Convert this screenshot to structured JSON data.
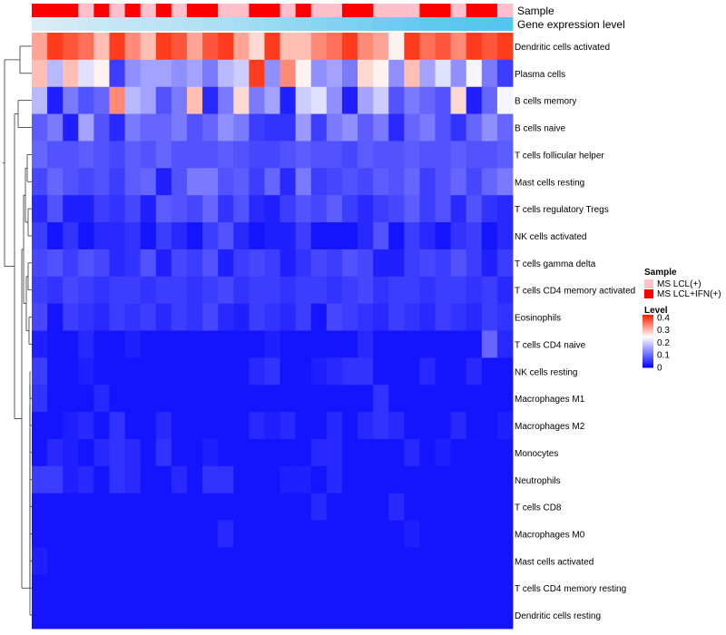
{
  "chart_data": {
    "type": "heatmap",
    "title": "",
    "annotation_tracks": [
      "Sample",
      "Gene expression level"
    ],
    "sample_legend": {
      "title": "Sample",
      "entries": [
        {
          "label": "MS LCL(+)",
          "color": "#ffc0cb"
        },
        {
          "label": "MS LCL+IFN(+)",
          "color": "#ff0000"
        }
      ]
    },
    "level_legend": {
      "title": "Level",
      "ticks": [
        "0.4",
        "0.3",
        "0.2",
        "0.1",
        "0"
      ],
      "tick_values": [
        0.4,
        0.3,
        0.2,
        0.1,
        0
      ],
      "range": [
        0,
        0.42
      ],
      "colors": {
        "low": "#0000ff",
        "mid": "#ffffff",
        "high": "#ff2200"
      }
    },
    "columns": 31,
    "sample_groups": [
      "IFN",
      "IFN",
      "IFN",
      "LCL",
      "IFN",
      "LCL",
      "IFN",
      "LCL",
      "IFN",
      "LCL",
      "IFN",
      "IFN",
      "LCL",
      "LCL",
      "IFN",
      "IFN",
      "LCL",
      "IFN",
      "LCL",
      "LCL",
      "IFN",
      "IFN",
      "LCL",
      "LCL",
      "LCL",
      "IFN",
      "IFN",
      "LCL",
      "IFN",
      "IFN",
      "LCL"
    ],
    "expression_track": [
      0.02,
      0.05,
      0.08,
      0.12,
      0.15,
      0.18,
      0.2,
      0.22,
      0.25,
      0.28,
      0.3,
      0.33,
      0.36,
      0.4,
      0.44,
      0.48,
      0.52,
      0.56,
      0.6,
      0.64,
      0.68,
      0.72,
      0.76,
      0.8,
      0.84,
      0.88,
      0.9,
      0.92,
      0.94,
      0.96,
      0.98
    ],
    "rows": [
      {
        "label": "Dendritic cells activated",
        "values": [
          0.32,
          0.4,
          0.38,
          0.36,
          0.3,
          0.4,
          0.34,
          0.3,
          0.4,
          0.38,
          0.32,
          0.38,
          0.4,
          0.32,
          0.28,
          0.4,
          0.3,
          0.3,
          0.34,
          0.36,
          0.4,
          0.34,
          0.32,
          0.26,
          0.4,
          0.36,
          0.38,
          0.34,
          0.4,
          0.38,
          0.4
        ]
      },
      {
        "label": "Plasma cells",
        "values": [
          0.3,
          0.18,
          0.3,
          0.22,
          0.26,
          0.06,
          0.14,
          0.16,
          0.16,
          0.14,
          0.16,
          0.12,
          0.18,
          0.2,
          0.4,
          0.14,
          0.34,
          0.26,
          0.14,
          0.16,
          0.12,
          0.28,
          0.26,
          0.14,
          0.3,
          0.16,
          0.22,
          0.14,
          0.24,
          0.12,
          0.06
        ]
      },
      {
        "label": "B cells memory",
        "values": [
          0.18,
          0.03,
          0.12,
          0.08,
          0.1,
          0.34,
          0.18,
          0.16,
          0.08,
          0.12,
          0.3,
          0.04,
          0.12,
          0.28,
          0.12,
          0.16,
          0.03,
          0.2,
          0.22,
          0.14,
          0.03,
          0.16,
          0.2,
          0.08,
          0.12,
          0.1,
          0.08,
          0.28,
          0.03,
          0.1,
          0.24
        ]
      },
      {
        "label": "B cells naive",
        "values": [
          0.09,
          0.12,
          0.03,
          0.16,
          0.08,
          0.04,
          0.12,
          0.1,
          0.1,
          0.12,
          0.08,
          0.1,
          0.14,
          0.12,
          0.06,
          0.05,
          0.05,
          0.15,
          0.06,
          0.12,
          0.14,
          0.09,
          0.12,
          0.04,
          0.1,
          0.12,
          0.08,
          0.05,
          0.1,
          0.14,
          0.1
        ]
      },
      {
        "label": "T cells follicular helper",
        "values": [
          0.1,
          0.08,
          0.08,
          0.09,
          0.08,
          0.07,
          0.09,
          0.08,
          0.1,
          0.08,
          0.08,
          0.08,
          0.09,
          0.08,
          0.07,
          0.07,
          0.08,
          0.09,
          0.08,
          0.08,
          0.07,
          0.09,
          0.08,
          0.08,
          0.09,
          0.08,
          0.08,
          0.09,
          0.08,
          0.08,
          0.09
        ]
      },
      {
        "label": "Mast cells resting",
        "values": [
          0.07,
          0.1,
          0.08,
          0.07,
          0.08,
          0.06,
          0.09,
          0.1,
          0.03,
          0.08,
          0.12,
          0.12,
          0.08,
          0.09,
          0.06,
          0.1,
          0.04,
          0.12,
          0.06,
          0.07,
          0.08,
          0.07,
          0.09,
          0.08,
          0.1,
          0.06,
          0.08,
          0.1,
          0.07,
          0.1,
          0.12
        ]
      },
      {
        "label": "T cells regulatory  Tregs",
        "values": [
          0.04,
          0.08,
          0.03,
          0.03,
          0.06,
          0.05,
          0.07,
          0.03,
          0.09,
          0.08,
          0.07,
          0.1,
          0.05,
          0.08,
          0.04,
          0.03,
          0.06,
          0.08,
          0.07,
          0.09,
          0.06,
          0.04,
          0.06,
          0.07,
          0.09,
          0.06,
          0.08,
          0.04,
          0.08,
          0.05,
          0.04
        ]
      },
      {
        "label": "NK cells activated",
        "values": [
          0.06,
          0.02,
          0.05,
          0.02,
          0.04,
          0.04,
          0.05,
          0.02,
          0.06,
          0.04,
          0.02,
          0.06,
          0.08,
          0.04,
          0.02,
          0.03,
          0.03,
          0.06,
          0.02,
          0.02,
          0.02,
          0.04,
          0.08,
          0.02,
          0.06,
          0.04,
          0.02,
          0.05,
          0.06,
          0.02,
          0.04
        ]
      },
      {
        "label": "T cells gamma delta",
        "values": [
          0.07,
          0.08,
          0.06,
          0.08,
          0.07,
          0.04,
          0.05,
          0.08,
          0.03,
          0.07,
          0.06,
          0.08,
          0.03,
          0.06,
          0.07,
          0.06,
          0.03,
          0.05,
          0.07,
          0.06,
          0.08,
          0.07,
          0.03,
          0.03,
          0.06,
          0.07,
          0.06,
          0.08,
          0.06,
          0.03,
          0.06
        ]
      },
      {
        "label": "T cells CD4 memory activated",
        "values": [
          0.06,
          0.05,
          0.07,
          0.06,
          0.05,
          0.06,
          0.06,
          0.05,
          0.06,
          0.06,
          0.05,
          0.06,
          0.07,
          0.05,
          0.06,
          0.06,
          0.05,
          0.06,
          0.06,
          0.05,
          0.06,
          0.07,
          0.05,
          0.06,
          0.06,
          0.05,
          0.06,
          0.06,
          0.05,
          0.06,
          0.04
        ]
      },
      {
        "label": "Eosinophils",
        "values": [
          0.07,
          0.02,
          0.06,
          0.05,
          0.04,
          0.06,
          0.05,
          0.06,
          0.04,
          0.06,
          0.05,
          0.07,
          0.04,
          0.03,
          0.06,
          0.05,
          0.04,
          0.06,
          0.02,
          0.07,
          0.06,
          0.05,
          0.04,
          0.06,
          0.05,
          0.04,
          0.06,
          0.05,
          0.04,
          0.06,
          0.05
        ]
      },
      {
        "label": "T cells CD4 naive",
        "values": [
          0.03,
          0.02,
          0.02,
          0.04,
          0.02,
          0.02,
          0.03,
          0.02,
          0.02,
          0.02,
          0.02,
          0.02,
          0.02,
          0.02,
          0.02,
          0.03,
          0.02,
          0.02,
          0.02,
          0.02,
          0.02,
          0.04,
          0.02,
          0.02,
          0.02,
          0.02,
          0.02,
          0.02,
          0.02,
          0.1,
          0.04
        ]
      },
      {
        "label": "NK cells resting",
        "values": [
          0.06,
          0.02,
          0.02,
          0.03,
          0.02,
          0.02,
          0.02,
          0.02,
          0.02,
          0.02,
          0.02,
          0.02,
          0.02,
          0.02,
          0.04,
          0.05,
          0.02,
          0.02,
          0.03,
          0.04,
          0.05,
          0.05,
          0.02,
          0.02,
          0.02,
          0.04,
          0.02,
          0.02,
          0.04,
          0.02,
          0.02
        ]
      },
      {
        "label": "Macrophages M1",
        "values": [
          0.05,
          0.02,
          0.02,
          0.02,
          0.04,
          0.02,
          0.02,
          0.02,
          0.02,
          0.02,
          0.02,
          0.02,
          0.02,
          0.02,
          0.02,
          0.02,
          0.02,
          0.02,
          0.02,
          0.02,
          0.02,
          0.02,
          0.05,
          0.02,
          0.02,
          0.02,
          0.02,
          0.02,
          0.02,
          0.02,
          0.02
        ]
      },
      {
        "label": "Macrophages M2",
        "values": [
          0.02,
          0.02,
          0.03,
          0.04,
          0.02,
          0.05,
          0.02,
          0.02,
          0.04,
          0.02,
          0.02,
          0.02,
          0.02,
          0.02,
          0.04,
          0.03,
          0.04,
          0.02,
          0.02,
          0.04,
          0.02,
          0.04,
          0.05,
          0.04,
          0.02,
          0.02,
          0.02,
          0.04,
          0.02,
          0.02,
          0.03
        ]
      },
      {
        "label": "Monocytes",
        "values": [
          0.02,
          0.04,
          0.03,
          0.02,
          0.04,
          0.05,
          0.04,
          0.02,
          0.05,
          0.02,
          0.02,
          0.03,
          0.02,
          0.02,
          0.02,
          0.02,
          0.02,
          0.02,
          0.04,
          0.04,
          0.02,
          0.02,
          0.02,
          0.02,
          0.04,
          0.02,
          0.03,
          0.02,
          0.02,
          0.02,
          0.02
        ]
      },
      {
        "label": "Neutrophils",
        "values": [
          0.06,
          0.06,
          0.03,
          0.04,
          0.02,
          0.05,
          0.04,
          0.02,
          0.02,
          0.04,
          0.02,
          0.05,
          0.05,
          0.02,
          0.02,
          0.02,
          0.03,
          0.03,
          0.02,
          0.04,
          0.02,
          0.02,
          0.02,
          0.02,
          0.02,
          0.02,
          0.02,
          0.02,
          0.02,
          0.02,
          0.02
        ]
      },
      {
        "label": "T cells CD8",
        "values": [
          0.02,
          0.02,
          0.02,
          0.02,
          0.02,
          0.02,
          0.02,
          0.02,
          0.02,
          0.02,
          0.02,
          0.02,
          0.02,
          0.02,
          0.02,
          0.02,
          0.02,
          0.02,
          0.04,
          0.02,
          0.02,
          0.02,
          0.02,
          0.04,
          0.02,
          0.02,
          0.02,
          0.02,
          0.02,
          0.02,
          0.02
        ]
      },
      {
        "label": "Macrophages M0",
        "values": [
          0.02,
          0.02,
          0.02,
          0.02,
          0.02,
          0.02,
          0.02,
          0.02,
          0.02,
          0.02,
          0.02,
          0.02,
          0.04,
          0.02,
          0.02,
          0.02,
          0.02,
          0.02,
          0.02,
          0.02,
          0.02,
          0.02,
          0.02,
          0.02,
          0.03,
          0.02,
          0.02,
          0.02,
          0.02,
          0.02,
          0.02
        ]
      },
      {
        "label": "Mast cells activated",
        "values": [
          0.03,
          0.02,
          0.02,
          0.02,
          0.02,
          0.02,
          0.02,
          0.02,
          0.02,
          0.02,
          0.02,
          0.02,
          0.02,
          0.02,
          0.02,
          0.02,
          0.02,
          0.02,
          0.02,
          0.02,
          0.02,
          0.02,
          0.02,
          0.02,
          0.02,
          0.02,
          0.02,
          0.02,
          0.02,
          0.02,
          0.02
        ]
      },
      {
        "label": "T cells CD4 memory resting",
        "values": [
          0.02,
          0.02,
          0.02,
          0.02,
          0.02,
          0.02,
          0.02,
          0.02,
          0.02,
          0.02,
          0.02,
          0.02,
          0.02,
          0.02,
          0.02,
          0.02,
          0.02,
          0.02,
          0.02,
          0.02,
          0.02,
          0.02,
          0.02,
          0.02,
          0.02,
          0.02,
          0.02,
          0.02,
          0.02,
          0.02,
          0.02
        ]
      },
      {
        "label": "Dendritic cells resting",
        "values": [
          0.02,
          0.02,
          0.02,
          0.02,
          0.02,
          0.02,
          0.02,
          0.02,
          0.02,
          0.02,
          0.02,
          0.02,
          0.02,
          0.02,
          0.02,
          0.02,
          0.02,
          0.02,
          0.02,
          0.02,
          0.02,
          0.02,
          0.02,
          0.02,
          0.02,
          0.02,
          0.02,
          0.02,
          0.02,
          0.02,
          0.02
        ]
      }
    ]
  }
}
